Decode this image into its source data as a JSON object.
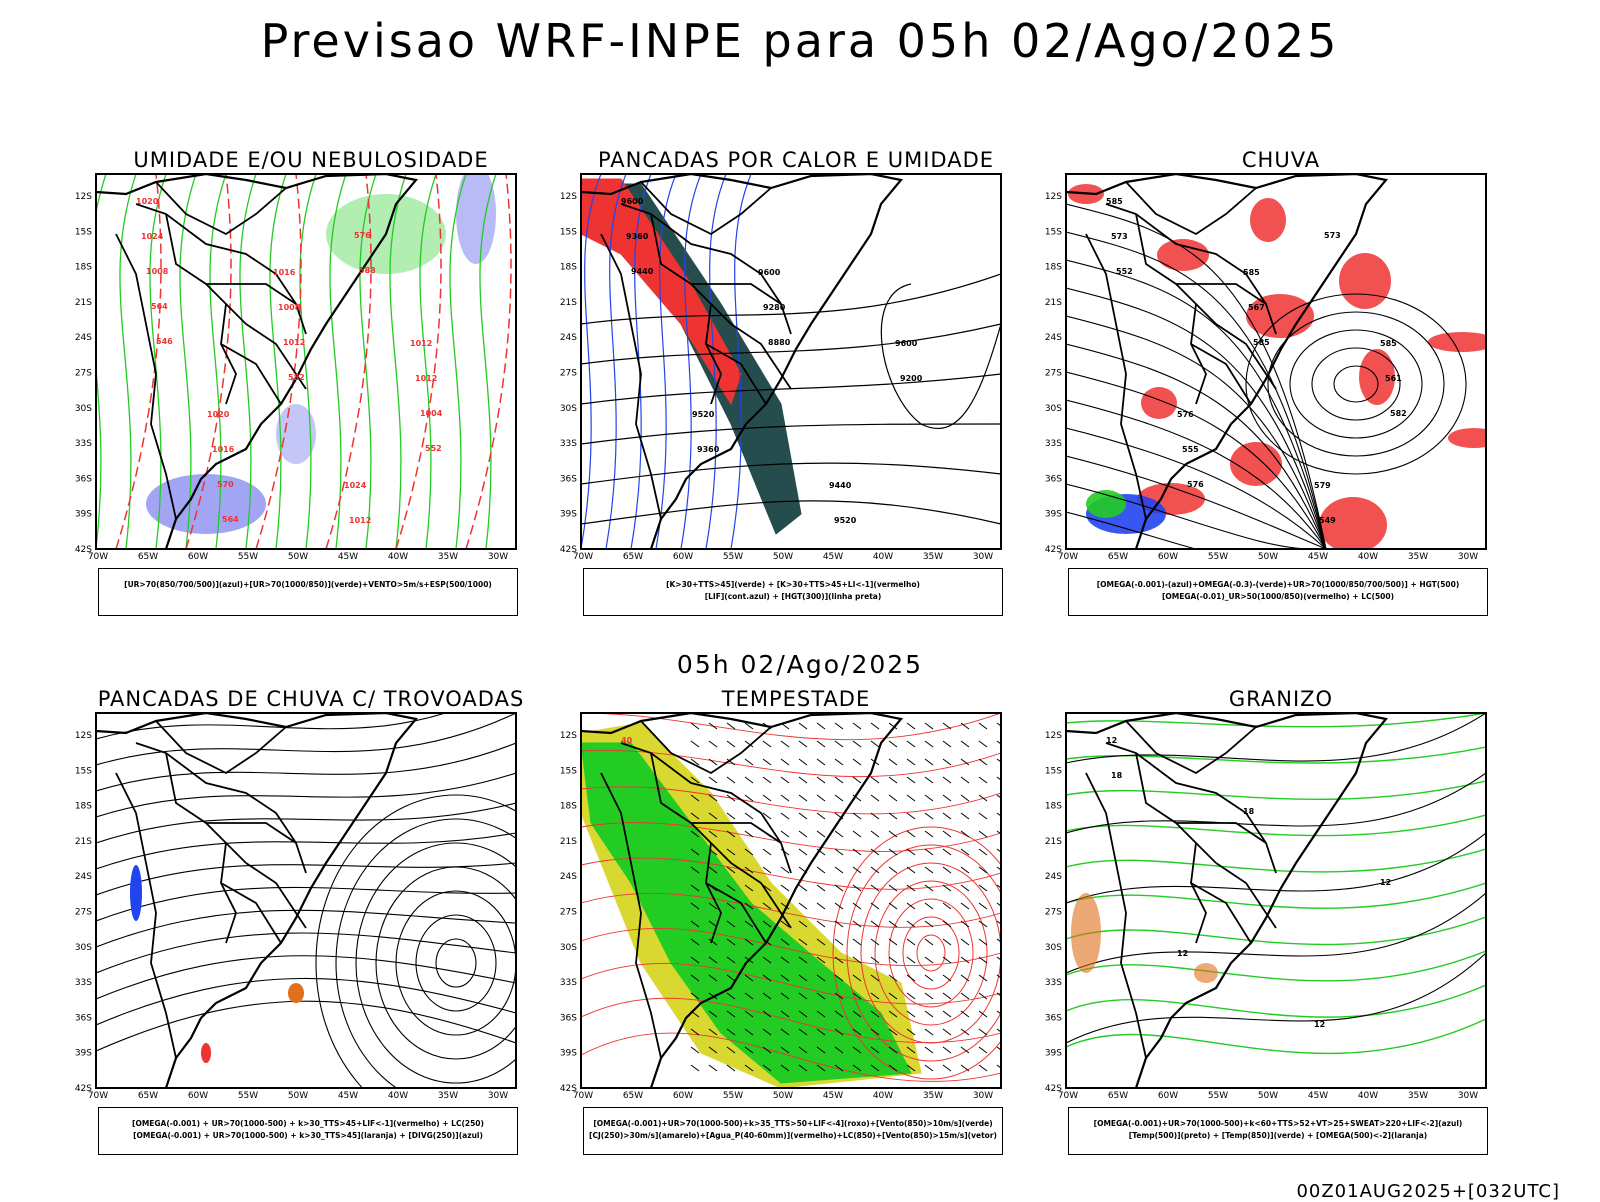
{
  "title": "Previsao WRF-INPE  para 05h 02/Ago/2025",
  "mid_title": "05h 02/Ago/2025",
  "footer": "00Z01AUG2025+[032UTC]",
  "axes": {
    "lat_labels": [
      "12S",
      "15S",
      "18S",
      "21S",
      "24S",
      "27S",
      "30S",
      "33S",
      "36S",
      "39S",
      "42S"
    ],
    "lon_labels": [
      "70W",
      "65W",
      "60W",
      "55W",
      "50W",
      "45W",
      "40W",
      "35W",
      "30W"
    ]
  },
  "colors": {
    "red": "#ee3333",
    "green": "#22cc22",
    "blue": "#2244ee",
    "lavender": "#8a8ef0",
    "teal": "#264d4d",
    "yellow": "#d8d830",
    "orange": "#e0701a",
    "black": "#000000"
  },
  "panels": [
    {
      "title": "UMIDADE E/OU NEBULOSIDADE",
      "legend": [
        "[UR>70(850/700/500)](azul)+[UR>70(1000/850)](verde)+VENTO>5m/s+ESP(500/1000)"
      ],
      "contour_labels": [
        "1020",
        "1016",
        "1012",
        "1020",
        "1024",
        "1024",
        "1008",
        "1012",
        "1016",
        "1012",
        "1008",
        "1012",
        "1004",
        "570",
        "576",
        "564",
        "582",
        "552",
        "564",
        "588",
        "546"
      ]
    },
    {
      "title": "PANCADAS POR CALOR E UMIDADE",
      "legend": [
        "[K>30+TTS>45](verde) + [K>30+TTS>45+LI<-1](vermelho)",
        "[LIF](cont.azul) + [HGT(300)](linha preta)"
      ],
      "contour_labels": [
        "9600",
        "9600",
        "9600",
        "9520",
        "9440",
        "9360",
        "9280",
        "9200",
        "9360",
        "9520",
        "9440",
        "8880"
      ]
    },
    {
      "title": "CHUVA",
      "legend": [
        "[OMEGA(-0.001)-(azul)+OMEGA(-0.3)-(verde)+UR>70(1000/850/700/500)] + HGT(500)",
        "[OMEGA(-0.01)_UR>50(1000/850)(vermelho) + LC(500)"
      ],
      "contour_labels": [
        "585",
        "585",
        "585",
        "576",
        "579",
        "573",
        "567",
        "561",
        "555",
        "549",
        "552",
        "585",
        "582",
        "576",
        "573"
      ]
    },
    {
      "title": "PANCADAS DE CHUVA C/ TROVOADAS",
      "legend": [
        "[OMEGA(-0.001) + UR>70(1000-500) + k>30_TTS>45+LIF<-1](vermelho) + LC(250)",
        "[OMEGA(-0.001) + UR>70(1000-500) + k>30_TTS>45](laranja) + [DIVG(250)](azul)"
      ],
      "contour_labels": []
    },
    {
      "title": "TEMPESTADE",
      "legend": [
        "[OMEGA(-0.001)+UR>70(1000-500)+k>35_TTS>50+LIF<-4](roxo)+[Vento(850)>10m/s](verde)",
        "[CJ(250)>30m/s](amarelo)+[Agua_P(40-60mm)](vermelho)+LC(850)+[Vento(850)>15m/s](vetor)"
      ],
      "contour_labels": [
        "40"
      ]
    },
    {
      "title": "GRANIZO",
      "legend": [
        "[OMEGA(-0.001)+UR>70(1000-500)+k<60+TTS>52+VT>25+SWEAT>220+LIF<-2](azul)",
        "[Temp(500)](preto) + [Temp(850)](verde) + [OMEGA(500)<-2](laranja)"
      ],
      "contour_labels": [
        "12",
        "18",
        "12",
        "12",
        "12",
        "18"
      ]
    }
  ]
}
